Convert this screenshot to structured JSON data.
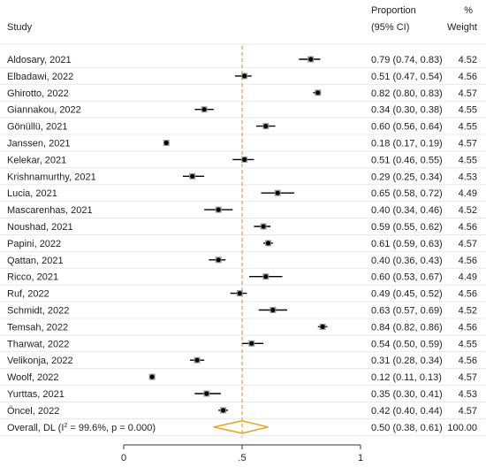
{
  "chart_data": {
    "type": "forest",
    "header": {
      "study": "Study",
      "proportion_line1": "Proportion",
      "proportion_line2": "(95% CI)",
      "weight_line1": "%",
      "weight_line2": "Weight"
    },
    "studies": [
      {
        "name": "Aldosary, 2021",
        "es": 0.79,
        "lo": 0.74,
        "hi": 0.83,
        "ci_text": "0.79 (0.74, 0.83)",
        "weight": "4.52"
      },
      {
        "name": "Elbadawi, 2022",
        "es": 0.51,
        "lo": 0.47,
        "hi": 0.54,
        "ci_text": "0.51 (0.47, 0.54)",
        "weight": "4.56"
      },
      {
        "name": "Ghirotto, 2022",
        "es": 0.82,
        "lo": 0.8,
        "hi": 0.83,
        "ci_text": "0.82 (0.80, 0.83)",
        "weight": "4.57"
      },
      {
        "name": "Giannakou, 2022",
        "es": 0.34,
        "lo": 0.3,
        "hi": 0.38,
        "ci_text": "0.34 (0.30, 0.38)",
        "weight": "4.55"
      },
      {
        "name": "Gönüllü, 2021",
        "es": 0.6,
        "lo": 0.56,
        "hi": 0.64,
        "ci_text": "0.60 (0.56, 0.64)",
        "weight": "4.55"
      },
      {
        "name": "Janssen, 2021",
        "es": 0.18,
        "lo": 0.17,
        "hi": 0.19,
        "ci_text": "0.18 (0.17, 0.19)",
        "weight": "4.57"
      },
      {
        "name": "Kelekar, 2021",
        "es": 0.51,
        "lo": 0.46,
        "hi": 0.55,
        "ci_text": "0.51 (0.46, 0.55)",
        "weight": "4.55"
      },
      {
        "name": "Krishnamurthy, 2021",
        "es": 0.29,
        "lo": 0.25,
        "hi": 0.34,
        "ci_text": "0.29 (0.25, 0.34)",
        "weight": "4.53"
      },
      {
        "name": "Lucia, 2021",
        "es": 0.65,
        "lo": 0.58,
        "hi": 0.72,
        "ci_text": "0.65 (0.58, 0.72)",
        "weight": "4.49"
      },
      {
        "name": "Mascarenhas, 2021",
        "es": 0.4,
        "lo": 0.34,
        "hi": 0.46,
        "ci_text": "0.40 (0.34, 0.46)",
        "weight": "4.52"
      },
      {
        "name": "Noushad, 2021",
        "es": 0.59,
        "lo": 0.55,
        "hi": 0.62,
        "ci_text": "0.59 (0.55, 0.62)",
        "weight": "4.56"
      },
      {
        "name": "Papini, 2022",
        "es": 0.61,
        "lo": 0.59,
        "hi": 0.63,
        "ci_text": "0.61 (0.59, 0.63)",
        "weight": "4.57"
      },
      {
        "name": "Qattan, 2021",
        "es": 0.4,
        "lo": 0.36,
        "hi": 0.43,
        "ci_text": "0.40 (0.36, 0.43)",
        "weight": "4.56"
      },
      {
        "name": "Ricco, 2021",
        "es": 0.6,
        "lo": 0.53,
        "hi": 0.67,
        "ci_text": "0.60 (0.53, 0.67)",
        "weight": "4.49"
      },
      {
        "name": "Ruf, 2022",
        "es": 0.49,
        "lo": 0.45,
        "hi": 0.52,
        "ci_text": "0.49 (0.45, 0.52)",
        "weight": "4.56"
      },
      {
        "name": "Schmidt, 2022",
        "es": 0.63,
        "lo": 0.57,
        "hi": 0.69,
        "ci_text": "0.63 (0.57, 0.69)",
        "weight": "4.52"
      },
      {
        "name": "Temsah, 2022",
        "es": 0.84,
        "lo": 0.82,
        "hi": 0.86,
        "ci_text": "0.84 (0.82, 0.86)",
        "weight": "4.56"
      },
      {
        "name": "Tharwat, 2022",
        "es": 0.54,
        "lo": 0.5,
        "hi": 0.59,
        "ci_text": "0.54 (0.50, 0.59)",
        "weight": "4.55"
      },
      {
        "name": "Velikonja, 2022",
        "es": 0.31,
        "lo": 0.28,
        "hi": 0.34,
        "ci_text": "0.31 (0.28, 0.34)",
        "weight": "4.56"
      },
      {
        "name": "Woolf, 2022",
        "es": 0.12,
        "lo": 0.11,
        "hi": 0.13,
        "ci_text": "0.12 (0.11, 0.13)",
        "weight": "4.57"
      },
      {
        "name": "Yurttas, 2021",
        "es": 0.35,
        "lo": 0.3,
        "hi": 0.41,
        "ci_text": "0.35 (0.30, 0.41)",
        "weight": "4.53"
      },
      {
        "name": "Öncel, 2022",
        "es": 0.42,
        "lo": 0.4,
        "hi": 0.44,
        "ci_text": "0.42 (0.40, 0.44)",
        "weight": "4.57"
      }
    ],
    "overall": {
      "label_prefix": "Overall, DL (I",
      "label_sup": "2",
      "label_suffix": " = 99.6%, p = 0.000)",
      "es": 0.5,
      "lo": 0.38,
      "hi": 0.61,
      "ci_text": "0.50 (0.38, 0.61)",
      "weight": "100.00"
    },
    "xaxis": {
      "range": [
        0,
        1
      ],
      "ticks": [
        {
          "value": 0,
          "label": "0"
        },
        {
          "value": 0.5,
          "label": ".5"
        },
        {
          "value": 1,
          "label": "1"
        }
      ]
    },
    "reference_line": 0.5,
    "colors": {
      "marker": "#000000",
      "ci_line": "#000000",
      "reference_line": "#e8862a",
      "diamond": "#e8a317",
      "text": "#222222",
      "grid": "#e8e8e8"
    }
  }
}
